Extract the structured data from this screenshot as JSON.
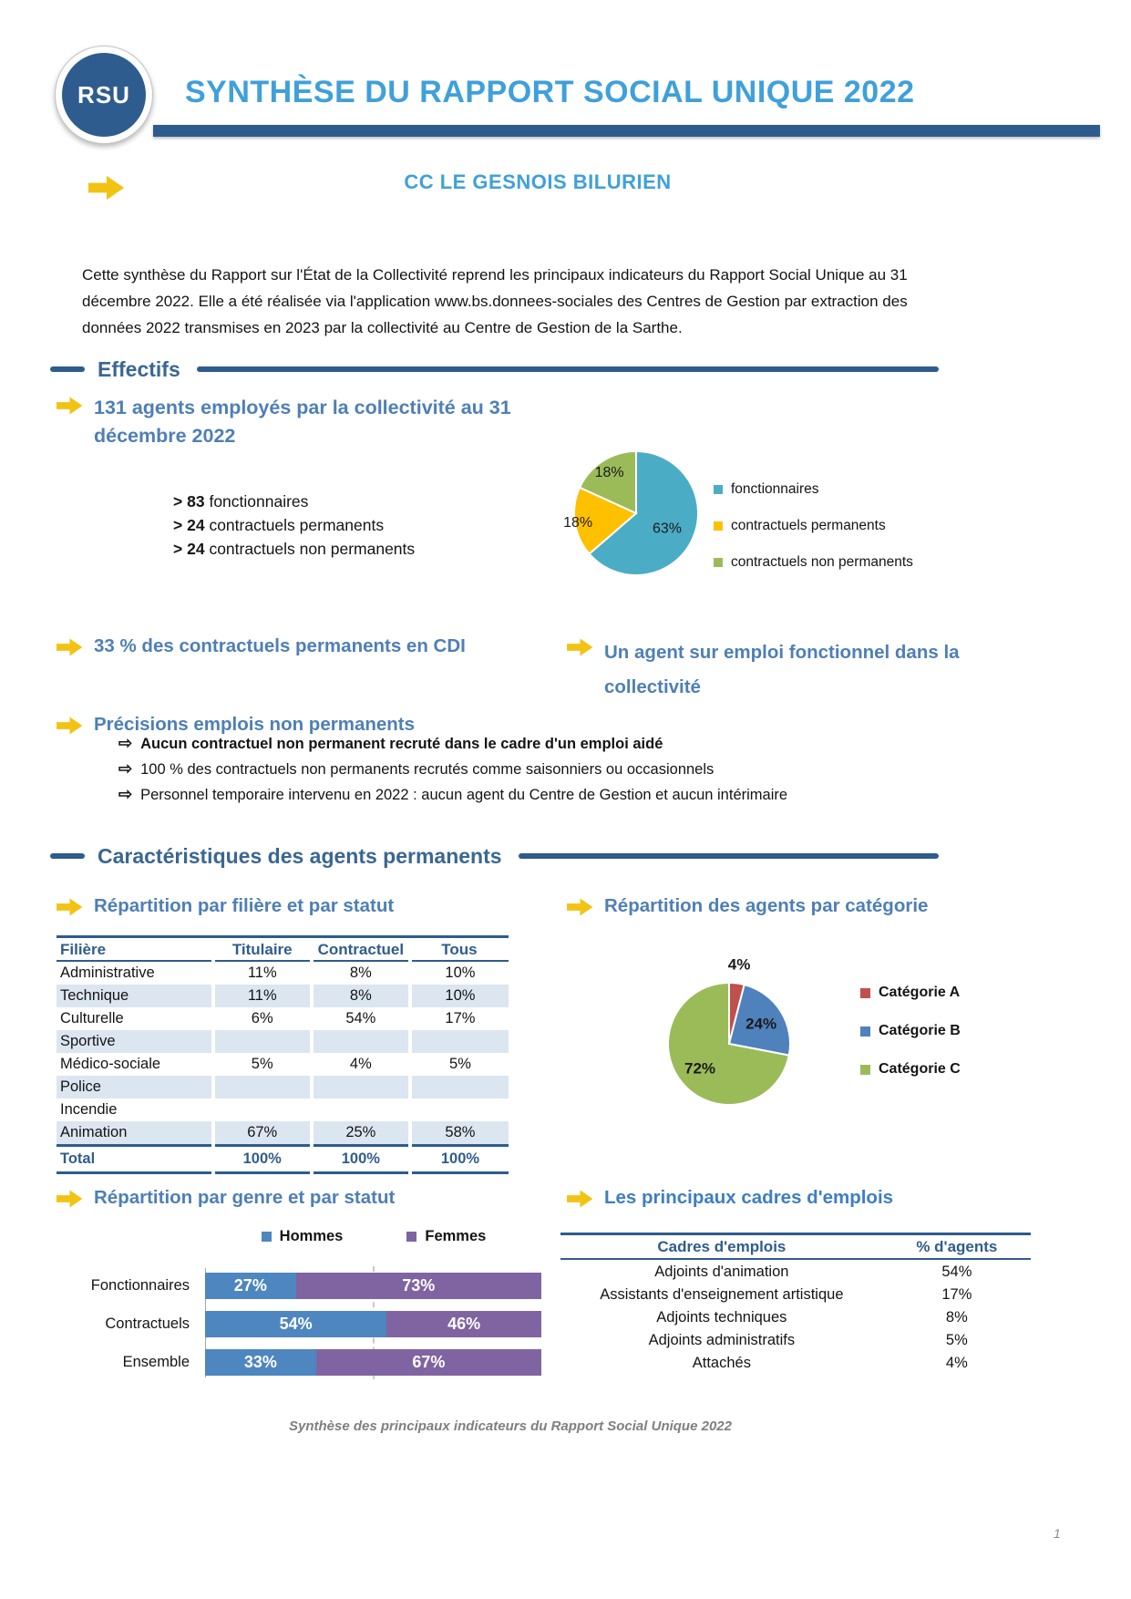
{
  "header": {
    "logo_text": "RSU",
    "title": "SYNTHÈSE DU RAPPORT SOCIAL UNIQUE 2022",
    "subtitle": "CC LE GESNOIS BILURIEN"
  },
  "intro_text": "Cette synthèse du Rapport sur l'État de la Collectivité reprend les principaux indicateurs du Rapport Social Unique au 31 décembre 2022. Elle a été réalisée via l'application www.bs.donnees-sociales des Centres de Gestion par extraction des données 2022 transmises en 2023 par la collectivité au Centre de Gestion de la Sarthe.",
  "icons": {
    "bullet_arrow": "⇨"
  },
  "effectifs": {
    "section_title": "Effectifs",
    "headline": "131 agents employés par la collectivité au 31 décembre 2022",
    "counts": [
      {
        "prefix": ">",
        "value": "83",
        "label": "fonctionnaires"
      },
      {
        "prefix": ">",
        "value": "24",
        "label": "contractuels permanents"
      },
      {
        "prefix": ">",
        "value": "24",
        "label": "contractuels non permanents"
      }
    ],
    "cdi_note": "33 % des contractuels permanents en CDI",
    "fonctionnel_note": "Un agent sur emploi fonctionnel dans la collectivité",
    "precisions_title": "Précisions emplois non permanents",
    "precisions": [
      "Aucun contractuel non permanent recruté dans le cadre d'un emploi aidé",
      "100 % des contractuels non permanents recrutés comme saisonniers ou occasionnels",
      "Personnel temporaire intervenu en 2022 : aucun agent du Centre de Gestion et aucun intérimaire"
    ]
  },
  "caracteristiques": {
    "section_title": "Caractéristiques des agents permanents",
    "filiere_heading": "Répartition par filière et par statut",
    "categorie_heading": "Répartition des agents par catégorie",
    "genre_heading": "Répartition par genre et par statut",
    "cadres_heading": "Les principaux cadres d'emplois"
  },
  "footer": {
    "caption": "Synthèse des principaux indicateurs du Rapport Social Unique 2022",
    "page_number": "1"
  },
  "colors": {
    "accent_dark_blue": "#2E5C8E",
    "title_blue": "#3FA0DA",
    "heading_blue": "#4E7FB5",
    "section_blue": "#3A6792",
    "arrow_yellow": "#F2C313",
    "table_shade": "#DCE6F1",
    "footer_gray": "#7F7F7F"
  },
  "chart_data": [
    {
      "id": "statut_pie",
      "type": "pie",
      "title": "131 agents employés par la collectivité au 31 décembre 2022",
      "legend_position": "right",
      "series": [
        {
          "label": "fonctionnaires",
          "value": 63,
          "color": "#4BACC6",
          "label_r": 0.55
        },
        {
          "label": "contractuels permanents",
          "value": 18,
          "color": "#FFC000",
          "label_r": 0.95
        },
        {
          "label": "contractuels non permanents",
          "value": 18,
          "color": "#9BBB59",
          "label_r": 0.8
        }
      ]
    },
    {
      "id": "categorie_pie",
      "type": "pie",
      "title": "Répartition des agents par catégorie",
      "legend_position": "right",
      "series": [
        {
          "label": "Catégorie A",
          "value": 4,
          "color": "#C0504D",
          "label_outside": true
        },
        {
          "label": "Catégorie B",
          "value": 24,
          "color": "#4F81BD"
        },
        {
          "label": "Catégorie C",
          "value": 72,
          "color": "#9BBB59"
        }
      ]
    },
    {
      "id": "genre_bar",
      "type": "bar",
      "orientation": "horizontal",
      "stacked": true,
      "title": "Répartition par genre et par statut",
      "categories": [
        "Fonctionnaires",
        "Contractuels",
        "Ensemble"
      ],
      "series": [
        {
          "label": "Hommes",
          "color": "#4E86C0",
          "values": [
            27,
            54,
            33
          ]
        },
        {
          "label": "Femmes",
          "color": "#8064A2",
          "values": [
            73,
            46,
            67
          ]
        }
      ],
      "xlim": [
        0,
        100
      ],
      "value_format": "percent",
      "legend_position": "top"
    },
    {
      "id": "filiere_table",
      "type": "table",
      "columns": [
        "Filière",
        "Titulaire",
        "Contractuel",
        "Tous"
      ],
      "rows": [
        [
          "Administrative",
          "11%",
          "8%",
          "10%"
        ],
        [
          "Technique",
          "11%",
          "8%",
          "10%"
        ],
        [
          "Culturelle",
          "6%",
          "54%",
          "17%"
        ],
        [
          "Sportive",
          "",
          "",
          ""
        ],
        [
          "Médico-sociale",
          "5%",
          "4%",
          "5%"
        ],
        [
          "Police",
          "",
          "",
          ""
        ],
        [
          "Incendie",
          "",
          "",
          ""
        ],
        [
          "Animation",
          "67%",
          "25%",
          "58%"
        ]
      ],
      "total_row": [
        "Total",
        "100%",
        "100%",
        "100%"
      ]
    },
    {
      "id": "cadres_table",
      "type": "table",
      "columns": [
        "Cadres d'emplois",
        "% d'agents"
      ],
      "rows": [
        [
          "Adjoints d'animation",
          "54%"
        ],
        [
          "Assistants d'enseignement artistique",
          "17%"
        ],
        [
          "Adjoints techniques",
          "8%"
        ],
        [
          "Adjoints administratifs",
          "5%"
        ],
        [
          "Attachés",
          "4%"
        ]
      ]
    }
  ]
}
